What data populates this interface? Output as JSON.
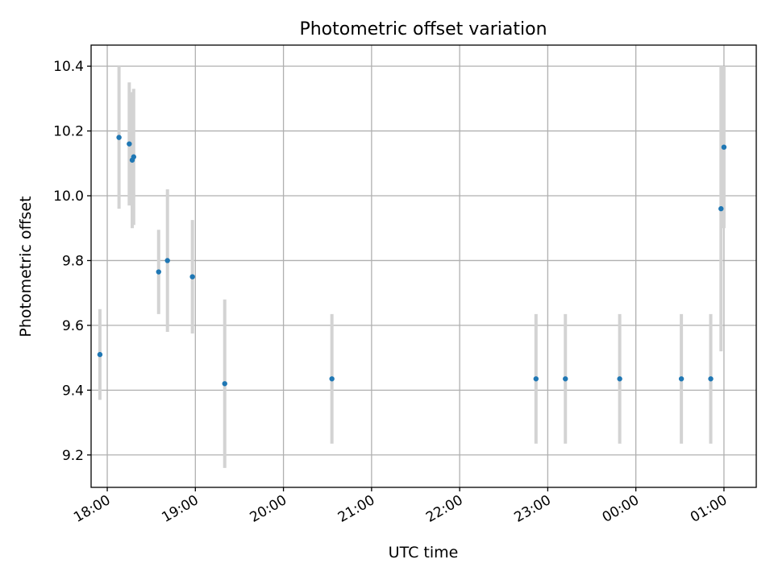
{
  "chart_data": {
    "type": "scatter",
    "title": "Photometric offset variation",
    "xlabel": "UTC time",
    "ylabel": "Photometric offset",
    "x_ticks": [
      "18:00",
      "19:00",
      "20:00",
      "21:00",
      "22:00",
      "23:00",
      "00:00",
      "01:00"
    ],
    "y_ticks": [
      "9.2",
      "9.4",
      "9.6",
      "9.8",
      "10.0",
      "10.2",
      "10.4"
    ],
    "ylim": [
      9.1,
      10.465
    ],
    "xlim": [
      "17:49",
      "01:22"
    ],
    "grid": true,
    "colors": {
      "points": "#1f77b4",
      "errorbars": "#d3d3d3"
    },
    "points": [
      {
        "time": "17:55",
        "y": 9.51,
        "err": 0.14
      },
      {
        "time": "18:08",
        "y": 10.18,
        "err": 0.22
      },
      {
        "time": "18:15",
        "y": 10.16,
        "err": 0.19
      },
      {
        "time": "18:17",
        "y": 10.11,
        "err": 0.21
      },
      {
        "time": "18:18",
        "y": 10.12,
        "err": 0.21
      },
      {
        "time": "18:35",
        "y": 9.765,
        "err": 0.13
      },
      {
        "time": "18:41",
        "y": 9.8,
        "err": 0.22
      },
      {
        "time": "18:58",
        "y": 9.75,
        "err": 0.175
      },
      {
        "time": "19:20",
        "y": 9.42,
        "err": 0.26
      },
      {
        "time": "20:33",
        "y": 9.435,
        "err": 0.2
      },
      {
        "time": "22:52",
        "y": 9.435,
        "err": 0.2
      },
      {
        "time": "23:12",
        "y": 9.435,
        "err": 0.2
      },
      {
        "time": "23:49",
        "y": 9.435,
        "err": 0.2
      },
      {
        "time": "00:31",
        "y": 9.435,
        "err": 0.2
      },
      {
        "time": "00:51",
        "y": 9.435,
        "err": 0.2
      },
      {
        "time": "00:58",
        "y": 9.96,
        "err": 0.44
      },
      {
        "time": "01:00",
        "y": 10.15,
        "err": 0.25
      }
    ]
  }
}
